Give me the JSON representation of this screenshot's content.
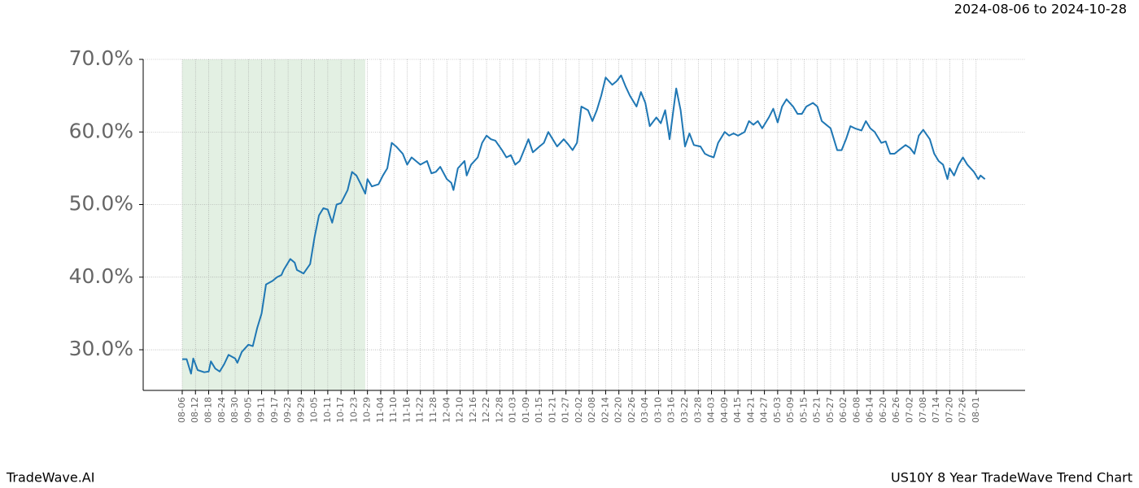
{
  "chart_data": {
    "type": "line",
    "title": "2024-08-06 to 2024-10-28",
    "footer_left": "TradeWave.AI",
    "footer_right": "US10Y 8 Year TradeWave Trend Chart",
    "color": "#1f77b4",
    "shade_color": "#e3f0e3",
    "shaded_range": [
      0,
      83
    ],
    "grid": true,
    "xlim": [
      -17.7,
      382.2
    ],
    "ylim": [
      24.4,
      70
    ],
    "yticks": [
      {
        "value": 30,
        "label": "30.0%"
      },
      {
        "value": 40,
        "label": "40.0%"
      },
      {
        "value": 50,
        "label": "50.0%"
      },
      {
        "value": 60,
        "label": "60.0%"
      },
      {
        "value": 70,
        "label": "70.0%"
      }
    ],
    "xticks": [
      {
        "value": 0,
        "label": "08-06"
      },
      {
        "value": 6,
        "label": "08-12"
      },
      {
        "value": 12,
        "label": "08-18"
      },
      {
        "value": 18,
        "label": "08-24"
      },
      {
        "value": 24,
        "label": "08-30"
      },
      {
        "value": 30,
        "label": "09-05"
      },
      {
        "value": 36,
        "label": "09-11"
      },
      {
        "value": 42,
        "label": "09-17"
      },
      {
        "value": 48,
        "label": "09-23"
      },
      {
        "value": 54,
        "label": "09-29"
      },
      {
        "value": 60,
        "label": "10-05"
      },
      {
        "value": 66,
        "label": "10-11"
      },
      {
        "value": 72,
        "label": "10-17"
      },
      {
        "value": 78,
        "label": "10-23"
      },
      {
        "value": 84,
        "label": "10-29"
      },
      {
        "value": 90,
        "label": "11-04"
      },
      {
        "value": 96,
        "label": "11-10"
      },
      {
        "value": 102,
        "label": "11-16"
      },
      {
        "value": 108,
        "label": "11-22"
      },
      {
        "value": 114,
        "label": "11-28"
      },
      {
        "value": 120,
        "label": "12-04"
      },
      {
        "value": 126,
        "label": "12-10"
      },
      {
        "value": 132,
        "label": "12-16"
      },
      {
        "value": 138,
        "label": "12-22"
      },
      {
        "value": 144,
        "label": "12-28"
      },
      {
        "value": 150,
        "label": "01-03"
      },
      {
        "value": 156,
        "label": "01-09"
      },
      {
        "value": 162,
        "label": "01-15"
      },
      {
        "value": 168,
        "label": "01-21"
      },
      {
        "value": 174,
        "label": "01-27"
      },
      {
        "value": 180,
        "label": "02-02"
      },
      {
        "value": 186,
        "label": "02-08"
      },
      {
        "value": 192,
        "label": "02-14"
      },
      {
        "value": 198,
        "label": "02-20"
      },
      {
        "value": 204,
        "label": "02-26"
      },
      {
        "value": 210,
        "label": "03-04"
      },
      {
        "value": 216,
        "label": "03-10"
      },
      {
        "value": 222,
        "label": "03-16"
      },
      {
        "value": 228,
        "label": "03-22"
      },
      {
        "value": 234,
        "label": "03-28"
      },
      {
        "value": 240,
        "label": "04-03"
      },
      {
        "value": 246,
        "label": "04-09"
      },
      {
        "value": 252,
        "label": "04-15"
      },
      {
        "value": 258,
        "label": "04-21"
      },
      {
        "value": 264,
        "label": "04-27"
      },
      {
        "value": 270,
        "label": "05-03"
      },
      {
        "value": 276,
        "label": "05-09"
      },
      {
        "value": 282,
        "label": "05-15"
      },
      {
        "value": 288,
        "label": "05-21"
      },
      {
        "value": 294,
        "label": "05-27"
      },
      {
        "value": 300,
        "label": "06-02"
      },
      {
        "value": 306,
        "label": "06-08"
      },
      {
        "value": 312,
        "label": "06-14"
      },
      {
        "value": 318,
        "label": "06-20"
      },
      {
        "value": 324,
        "label": "06-26"
      },
      {
        "value": 330,
        "label": "07-02"
      },
      {
        "value": 336,
        "label": "07-08"
      },
      {
        "value": 342,
        "label": "07-14"
      },
      {
        "value": 348,
        "label": "07-20"
      },
      {
        "value": 354,
        "label": "07-26"
      },
      {
        "value": 360,
        "label": "08-01"
      }
    ],
    "x": [
      0,
      2,
      4,
      5,
      7,
      10,
      12,
      13,
      15,
      17,
      19,
      21,
      24,
      25,
      27,
      30,
      32,
      34,
      36,
      38,
      41,
      43,
      45,
      46,
      49,
      51,
      52,
      55,
      58,
      60,
      62,
      64,
      66,
      68,
      70,
      72,
      75,
      77,
      79,
      81,
      83,
      84,
      86,
      89,
      91,
      93,
      95,
      97,
      100,
      102,
      104,
      106,
      108,
      111,
      113,
      115,
      117,
      120,
      122,
      123,
      125,
      128,
      129,
      131,
      134,
      136,
      138,
      140,
      142,
      145,
      147,
      149,
      151,
      153,
      155,
      157,
      159,
      162,
      164,
      166,
      168,
      170,
      173,
      175,
      177,
      179,
      181,
      184,
      186,
      188,
      190,
      192,
      195,
      197,
      199,
      201,
      203,
      206,
      208,
      210,
      212,
      215,
      217,
      219,
      221,
      224,
      226,
      228,
      230,
      232,
      235,
      237,
      239,
      241,
      243,
      246,
      248,
      250,
      252,
      255,
      257,
      259,
      261,
      263,
      266,
      268,
      270,
      272,
      274,
      277,
      279,
      281,
      283,
      286,
      288,
      290,
      292,
      294,
      297,
      299,
      301,
      303,
      305,
      308,
      310,
      312,
      314,
      317,
      319,
      321,
      323,
      325,
      328,
      330,
      332,
      334,
      336,
      339,
      341,
      343,
      345,
      347,
      348,
      350,
      352,
      354,
      356,
      359,
      361,
      362,
      364
    ],
    "values": [
      28.7,
      28.7,
      26.7,
      28.8,
      27.2,
      26.9,
      27.0,
      28.4,
      27.4,
      27.0,
      28.0,
      29.3,
      28.8,
      28.2,
      29.7,
      30.7,
      30.5,
      33,
      35,
      39,
      39.5,
      40,
      40.3,
      41,
      42.5,
      42,
      41,
      40.5,
      41.8,
      45.5,
      48.5,
      49.5,
      49.3,
      47.5,
      50,
      50.2,
      52,
      54.5,
      54,
      52.8,
      51.5,
      53.5,
      52.5,
      52.8,
      54,
      55,
      58.5,
      58,
      57,
      55.5,
      56.5,
      56,
      55.5,
      56,
      54.3,
      54.5,
      55.2,
      53.5,
      53,
      52,
      55,
      56,
      54,
      55.5,
      56.5,
      58.5,
      59.5,
      59,
      58.8,
      57.5,
      56.5,
      56.8,
      55.5,
      56,
      57.5,
      59,
      57.2,
      58,
      58.5,
      60,
      59,
      58,
      59,
      58.3,
      57.5,
      58.5,
      63.5,
      63,
      61.5,
      63,
      65,
      67.5,
      66.5,
      67,
      67.8,
      66.3,
      65,
      63.5,
      65.5,
      64,
      60.8,
      62,
      61.2,
      63,
      59,
      66,
      63,
      58,
      59.8,
      58.2,
      58,
      57,
      56.7,
      56.5,
      58.5,
      60,
      59.5,
      59.8,
      59.5,
      60,
      61.5,
      61,
      61.5,
      60.5,
      62,
      63.2,
      61.3,
      63.5,
      64.5,
      63.5,
      62.5,
      62.5,
      63.5,
      64,
      63.5,
      61.5,
      61,
      60.5,
      57.5,
      57.5,
      59,
      60.8,
      60.5,
      60.2,
      61.5,
      60.5,
      60,
      58.5,
      58.7,
      57,
      57,
      57.5,
      58.2,
      57.8,
      57,
      59.5,
      60.3,
      59,
      57,
      56,
      55.5,
      53.5,
      55,
      54,
      55.5,
      56.5,
      55.5,
      54.5,
      53.5,
      54,
      53.5
    ]
  }
}
